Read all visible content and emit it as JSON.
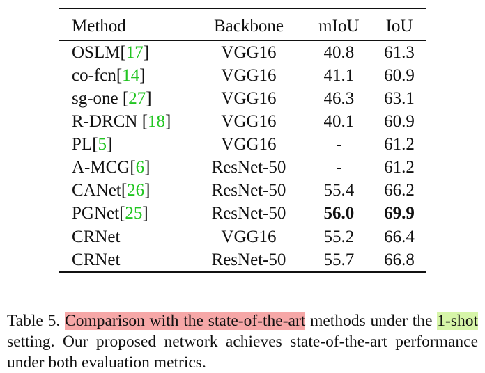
{
  "table": {
    "headers": [
      "Method",
      "Backbone",
      "mIoU",
      "IoU"
    ],
    "rows": [
      {
        "method": "OSLM",
        "ref_pre": "[",
        "ref": "17",
        "ref_post": "]",
        "backbone": "VGG16",
        "miou": "40.8",
        "iou": "61.3"
      },
      {
        "method": "co-fcn",
        "ref_pre": "[",
        "ref": "14",
        "ref_post": "]",
        "backbone": "VGG16",
        "miou": "41.1",
        "iou": "60.9"
      },
      {
        "method": "sg-one ",
        "ref_pre": "[",
        "ref": "27",
        "ref_post": "]",
        "backbone": "VGG16",
        "miou": "46.3",
        "iou": "63.1"
      },
      {
        "method": "R-DRCN ",
        "ref_pre": "[",
        "ref": "18",
        "ref_post": "]",
        "backbone": "VGG16",
        "miou": "40.1",
        "iou": "60.9"
      },
      {
        "method": "PL",
        "ref_pre": "[",
        "ref": "5",
        "ref_post": "]",
        "backbone": "VGG16",
        "miou": "-",
        "iou": "61.2"
      },
      {
        "method": "A-MCG",
        "ref_pre": "[",
        "ref": "6",
        "ref_post": "]",
        "backbone": "ResNet-50",
        "miou": "-",
        "iou": "61.2"
      },
      {
        "method": "CANet",
        "ref_pre": "[",
        "ref": "26",
        "ref_post": "]",
        "backbone": "ResNet-50",
        "miou": "55.4",
        "iou": "66.2"
      },
      {
        "method": "PGNet",
        "ref_pre": "[",
        "ref": "25",
        "ref_post": "]",
        "backbone": "ResNet-50",
        "miou": "56.0",
        "iou": "69.9"
      }
    ],
    "ours": [
      {
        "method": "CRNet",
        "backbone": "VGG16",
        "miou": "55.2",
        "iou": "66.4"
      },
      {
        "method": "CRNet",
        "backbone": "ResNet-50",
        "miou": "55.7",
        "iou": "66.8"
      }
    ]
  },
  "caption": {
    "prefix": "Table 5. ",
    "highlight1": "Comparison with the state-of-the-art",
    "middle": " methods under the ",
    "highlight2": "1-shot",
    "suffix": " setting. Our proposed network achieves state-of-the-art performance under both evaluation metrics."
  },
  "colors": {
    "reference": "#22c522",
    "highlight_red": "#f6a7a7",
    "highlight_green": "#d6f5a8"
  }
}
